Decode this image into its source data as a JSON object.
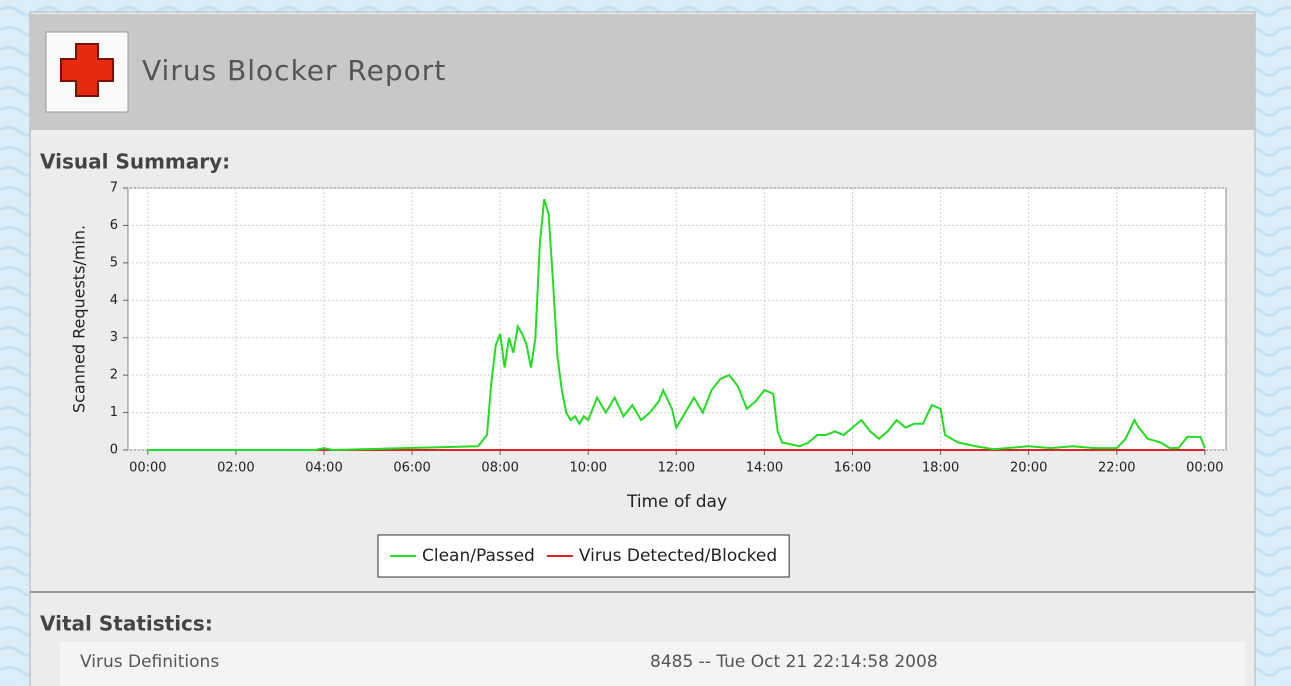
{
  "header": {
    "title": "Virus Blocker Report"
  },
  "summary_label": "Visual Summary:",
  "chart_data": {
    "type": "line",
    "y_label": "Scanned Requests/min.",
    "x_label": "Time of day",
    "xlim": [
      -0.45,
      24.48
    ],
    "ylim": [
      0,
      7
    ],
    "xticks": [
      {
        "value": 0,
        "label": "00:00"
      },
      {
        "value": 2,
        "label": "02:00"
      },
      {
        "value": 4,
        "label": "04:00"
      },
      {
        "value": 6,
        "label": "06:00"
      },
      {
        "value": 8,
        "label": "08:00"
      },
      {
        "value": 10,
        "label": "10:00"
      },
      {
        "value": 12,
        "label": "12:00"
      },
      {
        "value": 14,
        "label": "14:00"
      },
      {
        "value": 16,
        "label": "16:00"
      },
      {
        "value": 18,
        "label": "18:00"
      },
      {
        "value": 20,
        "label": "20:00"
      },
      {
        "value": 22,
        "label": "22:00"
      },
      {
        "value": 24,
        "label": "00:00"
      }
    ],
    "yticks": [
      0,
      1,
      2,
      3,
      4,
      5,
      6,
      7
    ],
    "grid": true,
    "legend": "bottom",
    "series": [
      {
        "name": "Clean/Passed",
        "color": "#22dd22",
        "x": [
          0,
          3.8,
          4,
          4.2,
          7.5,
          7.7,
          7.8,
          7.9,
          8.0,
          8.1,
          8.2,
          8.3,
          8.4,
          8.5,
          8.6,
          8.7,
          8.8,
          8.9,
          9.0,
          9.1,
          9.2,
          9.3,
          9.4,
          9.5,
          9.6,
          9.7,
          9.8,
          9.9,
          10.0,
          10.2,
          10.4,
          10.6,
          10.8,
          11.0,
          11.2,
          11.4,
          11.6,
          11.7,
          11.9,
          12.0,
          12.2,
          12.4,
          12.6,
          12.8,
          13.0,
          13.2,
          13.4,
          13.6,
          13.8,
          14.0,
          14.2,
          14.3,
          14.4,
          14.8,
          15.0,
          15.2,
          15.4,
          15.6,
          15.8,
          16.0,
          16.2,
          16.4,
          16.6,
          16.8,
          17.0,
          17.2,
          17.4,
          17.6,
          17.8,
          18.0,
          18.1,
          18.4,
          18.8,
          19.2,
          20.0,
          20.5,
          21.0,
          21.5,
          22.0,
          22.2,
          22.4,
          22.5,
          22.7,
          23.0,
          23.2,
          23.4,
          23.6,
          23.9,
          24.0
        ],
        "values": [
          0,
          0,
          0.05,
          0,
          0.1,
          0.4,
          1.8,
          2.8,
          3.1,
          2.2,
          3.0,
          2.6,
          3.3,
          3.1,
          2.8,
          2.2,
          3.0,
          5.5,
          6.7,
          6.3,
          4.5,
          2.5,
          1.6,
          1.0,
          0.8,
          0.9,
          0.7,
          0.9,
          0.8,
          1.4,
          1.0,
          1.4,
          0.9,
          1.2,
          0.8,
          1.0,
          1.3,
          1.6,
          1.1,
          0.6,
          1.0,
          1.4,
          1.0,
          1.6,
          1.9,
          2.0,
          1.7,
          1.1,
          1.3,
          1.6,
          1.5,
          0.5,
          0.2,
          0.1,
          0.2,
          0.4,
          0.4,
          0.5,
          0.4,
          0.6,
          0.8,
          0.5,
          0.3,
          0.5,
          0.8,
          0.6,
          0.7,
          0.7,
          1.2,
          1.1,
          0.4,
          0.2,
          0.1,
          0.02,
          0.1,
          0.05,
          0.1,
          0.05,
          0.05,
          0.3,
          0.8,
          0.6,
          0.3,
          0.2,
          0.05,
          0.05,
          0.35,
          0.35,
          0.05
        ]
      },
      {
        "name": "Virus Detected/Blocked",
        "color": "#dd2222",
        "x": [
          0,
          24
        ],
        "values": [
          0,
          0
        ]
      }
    ]
  },
  "stats_label": "Vital Statistics:",
  "stats": {
    "rows": [
      {
        "label": "Virus Definitions",
        "value": "8485 -- Tue Oct 21 22:14:58 2008"
      }
    ]
  }
}
